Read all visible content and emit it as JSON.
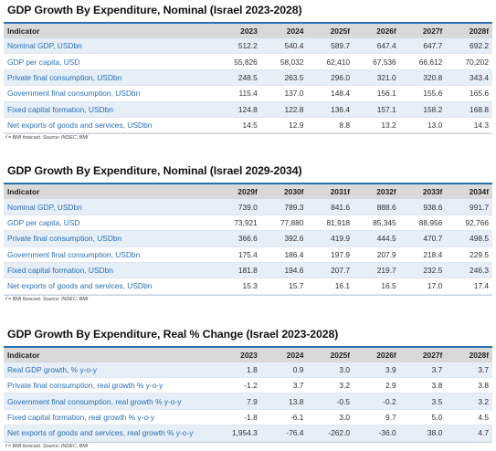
{
  "tables": [
    {
      "title": "GDP Growth By Expenditure, Nominal (Israel 2023-2028)",
      "header": [
        "Indicator",
        "2023",
        "2024",
        "2025f",
        "2026f",
        "2027f",
        "2028f"
      ],
      "rows": [
        [
          "Nominal GDP, USDbn",
          "512.2",
          "540.4",
          "589.7",
          "647.4",
          "647.7",
          "692.2"
        ],
        [
          "GDP per capita, USD",
          "55,826",
          "58,032",
          "62,410",
          "67,536",
          "66,612",
          "70,202"
        ],
        [
          "Private final consumption, USDbn",
          "248.5",
          "263.5",
          "296.0",
          "321.0",
          "320.8",
          "343.4"
        ],
        [
          "Government final consumption, USDbn",
          "115.4",
          "137.0",
          "148.4",
          "156.1",
          "155.6",
          "165.6"
        ],
        [
          "Fixed capital formation, USDbn",
          "124.8",
          "122.8",
          "136.4",
          "157.1",
          "158.2",
          "168.8"
        ],
        [
          "Net exports of goods and services, USDbn",
          "14.5",
          "12.9",
          "8.8",
          "13.2",
          "13.0",
          "14.3"
        ]
      ],
      "footnote": "f = BMI forecast. Source: INDEC, BMI"
    },
    {
      "title": "GDP Growth By Expenditure, Nominal (Israel 2029-2034)",
      "header": [
        "Indicator",
        "2029f",
        "2030f",
        "2031f",
        "2032f",
        "2033f",
        "2034f"
      ],
      "rows": [
        [
          "Nominal GDP, USDbn",
          "739.0",
          "789.3",
          "841.6",
          "888.6",
          "938.6",
          "991.7"
        ],
        [
          "GDP per capita, USD",
          "73,921",
          "77,880",
          "81,918",
          "85,345",
          "88,956",
          "92,766"
        ],
        [
          "Private final consumption, USDbn",
          "366.6",
          "392.6",
          "419.9",
          "444.5",
          "470.7",
          "498.5"
        ],
        [
          "Government final consumption, USDbn",
          "175.4",
          "186.4",
          "197.9",
          "207.9",
          "218.4",
          "229.5"
        ],
        [
          "Fixed capital formation, USDbn",
          "181.8",
          "194.6",
          "207.7",
          "219.7",
          "232.5",
          "246.3"
        ],
        [
          "Net exports of goods and services, USDbn",
          "15.3",
          "15.7",
          "16.1",
          "16.5",
          "17.0",
          "17.4"
        ]
      ],
      "footnote": "f = BMI forecast. Source: INDEC, BMI"
    },
    {
      "title": "GDP Growth By Expenditure, Real % Change (Israel 2023-2028)",
      "header": [
        "Indicator",
        "2023",
        "2024",
        "2025f",
        "2026f",
        "2027f",
        "2028f"
      ],
      "rows": [
        [
          "Real GDP growth, % y-o-y",
          "1.8",
          "0.9",
          "3.0",
          "3.9",
          "3.7",
          "3.7"
        ],
        [
          "Private final consumption, real growth % y-o-y",
          "-1.2",
          "3.7",
          "3.2",
          "2.9",
          "3.8",
          "3.8"
        ],
        [
          "Government final consumption, real growth % y-o-y",
          "7.9",
          "13.8",
          "-0.5",
          "-0.2",
          "3.5",
          "3.2"
        ],
        [
          "Fixed capital formation, real growth % y-o-y",
          "-1.8",
          "-6.1",
          "3.0",
          "9.7",
          "5.0",
          "4.5"
        ],
        [
          "Net exports of goods and services, real growth % y-o-y",
          "1,954.3",
          "-76.4",
          "-262.0",
          "-36.0",
          "38.0",
          "4.7"
        ]
      ],
      "footnote": "f = BMI forecast. Source: INDEC, BMI"
    }
  ]
}
